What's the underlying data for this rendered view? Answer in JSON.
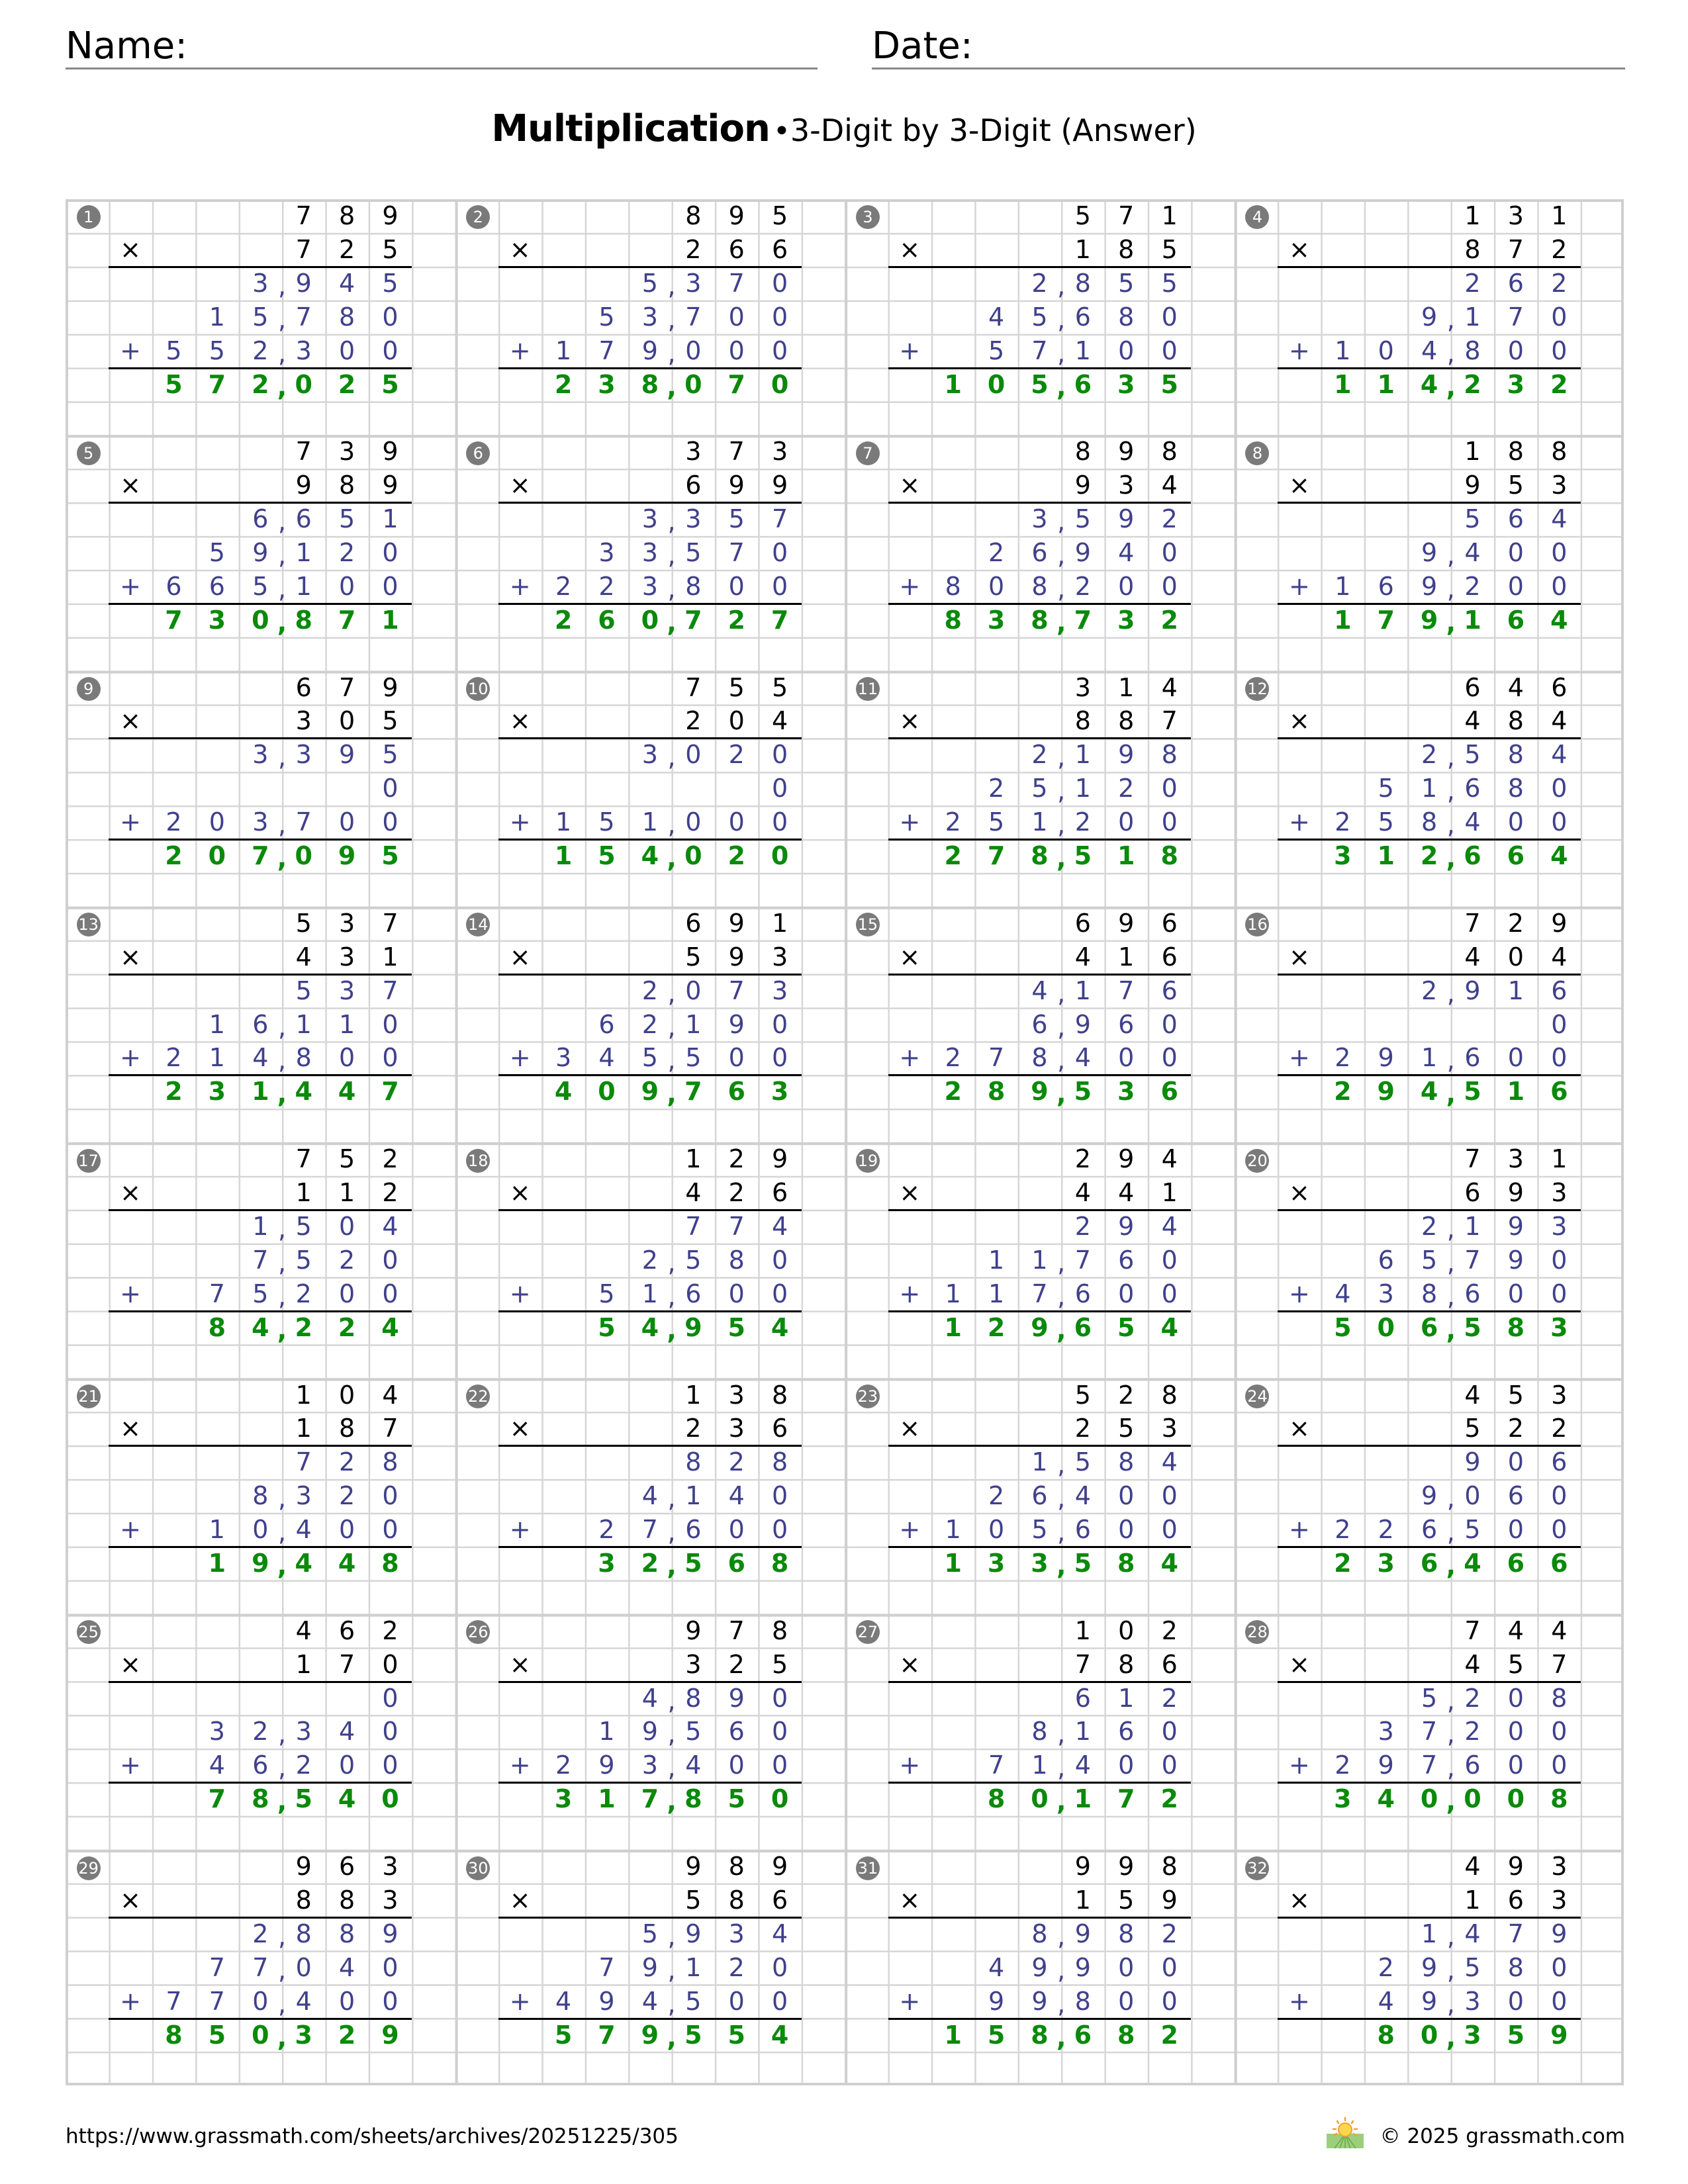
{
  "header": {
    "name_label": "Name:",
    "date_label": "Date:"
  },
  "title": {
    "main": "Multiplication",
    "separator": "•",
    "subtitle": "3-Digit by 3-Digit (Answer)"
  },
  "operators": {
    "multiply": "×",
    "add": "+"
  },
  "colors": {
    "factors": "#000000",
    "partials": "#40408c",
    "answer": "#0a8a0a",
    "badge": "#7a7a7a",
    "grid": "#d6d6d6"
  },
  "problems": [
    {
      "number": "1",
      "multiplicand": "789",
      "multiplier": "725",
      "partials": [
        "3,945",
        "15,780",
        "552,300"
      ],
      "answer": "572,025"
    },
    {
      "number": "2",
      "multiplicand": "895",
      "multiplier": "266",
      "partials": [
        "5,370",
        "53,700",
        "179,000"
      ],
      "answer": "238,070"
    },
    {
      "number": "3",
      "multiplicand": "571",
      "multiplier": "185",
      "partials": [
        "2,855",
        "45,680",
        "57,100"
      ],
      "answer": "105,635"
    },
    {
      "number": "4",
      "multiplicand": "131",
      "multiplier": "872",
      "partials": [
        "262",
        "9,170",
        "104,800"
      ],
      "answer": "114,232"
    },
    {
      "number": "5",
      "multiplicand": "739",
      "multiplier": "989",
      "partials": [
        "6,651",
        "59,120",
        "665,100"
      ],
      "answer": "730,871"
    },
    {
      "number": "6",
      "multiplicand": "373",
      "multiplier": "699",
      "partials": [
        "3,357",
        "33,570",
        "223,800"
      ],
      "answer": "260,727"
    },
    {
      "number": "7",
      "multiplicand": "898",
      "multiplier": "934",
      "partials": [
        "3,592",
        "26,940",
        "808,200"
      ],
      "answer": "838,732"
    },
    {
      "number": "8",
      "multiplicand": "188",
      "multiplier": "953",
      "partials": [
        "564",
        "9,400",
        "169,200"
      ],
      "answer": "179,164"
    },
    {
      "number": "9",
      "multiplicand": "679",
      "multiplier": "305",
      "partials": [
        "3,395",
        "0",
        "203,700"
      ],
      "answer": "207,095"
    },
    {
      "number": "10",
      "multiplicand": "755",
      "multiplier": "204",
      "partials": [
        "3,020",
        "0",
        "151,000"
      ],
      "answer": "154,020"
    },
    {
      "number": "11",
      "multiplicand": "314",
      "multiplier": "887",
      "partials": [
        "2,198",
        "25,120",
        "251,200"
      ],
      "answer": "278,518"
    },
    {
      "number": "12",
      "multiplicand": "646",
      "multiplier": "484",
      "partials": [
        "2,584",
        "51,680",
        "258,400"
      ],
      "answer": "312,664"
    },
    {
      "number": "13",
      "multiplicand": "537",
      "multiplier": "431",
      "partials": [
        "537",
        "16,110",
        "214,800"
      ],
      "answer": "231,447"
    },
    {
      "number": "14",
      "multiplicand": "691",
      "multiplier": "593",
      "partials": [
        "2,073",
        "62,190",
        "345,500"
      ],
      "answer": "409,763"
    },
    {
      "number": "15",
      "multiplicand": "696",
      "multiplier": "416",
      "partials": [
        "4,176",
        "6,960",
        "278,400"
      ],
      "answer": "289,536"
    },
    {
      "number": "16",
      "multiplicand": "729",
      "multiplier": "404",
      "partials": [
        "2,916",
        "0",
        "291,600"
      ],
      "answer": "294,516"
    },
    {
      "number": "17",
      "multiplicand": "752",
      "multiplier": "112",
      "partials": [
        "1,504",
        "7,520",
        "75,200"
      ],
      "answer": "84,224"
    },
    {
      "number": "18",
      "multiplicand": "129",
      "multiplier": "426",
      "partials": [
        "774",
        "2,580",
        "51,600"
      ],
      "answer": "54,954"
    },
    {
      "number": "19",
      "multiplicand": "294",
      "multiplier": "441",
      "partials": [
        "294",
        "11,760",
        "117,600"
      ],
      "answer": "129,654"
    },
    {
      "number": "20",
      "multiplicand": "731",
      "multiplier": "693",
      "partials": [
        "2,193",
        "65,790",
        "438,600"
      ],
      "answer": "506,583"
    },
    {
      "number": "21",
      "multiplicand": "104",
      "multiplier": "187",
      "partials": [
        "728",
        "8,320",
        "10,400"
      ],
      "answer": "19,448"
    },
    {
      "number": "22",
      "multiplicand": "138",
      "multiplier": "236",
      "partials": [
        "828",
        "4,140",
        "27,600"
      ],
      "answer": "32,568"
    },
    {
      "number": "23",
      "multiplicand": "528",
      "multiplier": "253",
      "partials": [
        "1,584",
        "26,400",
        "105,600"
      ],
      "answer": "133,584"
    },
    {
      "number": "24",
      "multiplicand": "453",
      "multiplier": "522",
      "partials": [
        "906",
        "9,060",
        "226,500"
      ],
      "answer": "236,466"
    },
    {
      "number": "25",
      "multiplicand": "462",
      "multiplier": "170",
      "partials": [
        "0",
        "32,340",
        "46,200"
      ],
      "answer": "78,540"
    },
    {
      "number": "26",
      "multiplicand": "978",
      "multiplier": "325",
      "partials": [
        "4,890",
        "19,560",
        "293,400"
      ],
      "answer": "317,850"
    },
    {
      "number": "27",
      "multiplicand": "102",
      "multiplier": "786",
      "partials": [
        "612",
        "8,160",
        "71,400"
      ],
      "answer": "80,172"
    },
    {
      "number": "28",
      "multiplicand": "744",
      "multiplier": "457",
      "partials": [
        "5,208",
        "37,200",
        "297,600"
      ],
      "answer": "340,008"
    },
    {
      "number": "29",
      "multiplicand": "963",
      "multiplier": "883",
      "partials": [
        "2,889",
        "77,040",
        "770,400"
      ],
      "answer": "850,329"
    },
    {
      "number": "30",
      "multiplicand": "989",
      "multiplier": "586",
      "partials": [
        "5,934",
        "79,120",
        "494,500"
      ],
      "answer": "579,554"
    },
    {
      "number": "31",
      "multiplicand": "998",
      "multiplier": "159",
      "partials": [
        "8,982",
        "49,900",
        "99,800"
      ],
      "answer": "158,682"
    },
    {
      "number": "32",
      "multiplicand": "493",
      "multiplier": "163",
      "partials": [
        "1,479",
        "29,580",
        "49,300"
      ],
      "answer": "80,359"
    }
  ],
  "footer": {
    "url": "https://www.grassmath.com/sheets/archives/20251225/305",
    "copyright": "© 2025 grassmath.com",
    "logo_icon": "sun-over-grass-icon"
  }
}
